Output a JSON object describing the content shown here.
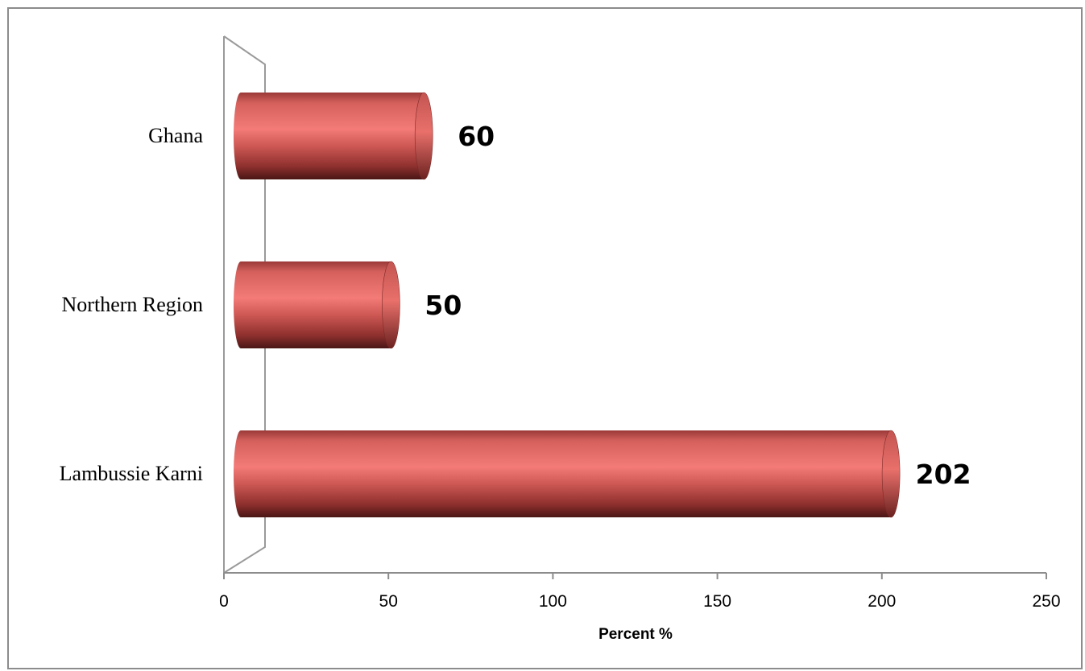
{
  "chart_data": {
    "type": "bar",
    "orientation": "horizontal",
    "style": "3d-cylinder",
    "categories": [
      "Ghana",
      "Northern Region",
      "Lambussie Karni"
    ],
    "values": [
      60,
      50,
      202
    ],
    "data_labels": [
      "60",
      "50",
      "202"
    ],
    "title": "",
    "xlabel": "Percent %",
    "ylabel": "",
    "xlim": [
      0,
      250
    ],
    "xticks": [
      0,
      50,
      100,
      150,
      200,
      250
    ],
    "xtick_labels": [
      "0",
      "50",
      "100",
      "150",
      "200",
      "250"
    ],
    "grid": false,
    "legend": "none",
    "bar_color": "#c0504d"
  }
}
